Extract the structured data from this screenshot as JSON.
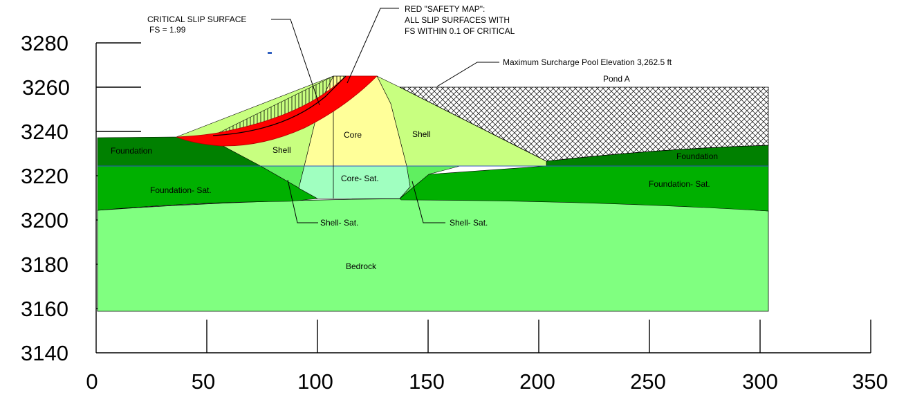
{
  "axes": {
    "x_ticks": [
      "0",
      "50",
      "100",
      "150",
      "200",
      "250",
      "300",
      "350"
    ],
    "y_ticks": [
      "3280",
      "3260",
      "3240",
      "3220",
      "3200",
      "3180",
      "3160",
      "3140"
    ]
  },
  "zones": {
    "foundation_left": "Foundation",
    "foundation_right": "Foundation",
    "foundation_sat_left": "Foundation- Sat.",
    "foundation_sat_right": "Foundation- Sat.",
    "shell_upstream": "Shell",
    "core": "Core",
    "shell_downstream": "Shell",
    "core_sat": "Core- Sat.",
    "shell_sat_left": "Shell- Sat.",
    "shell_sat_right": "Shell- Sat.",
    "bedrock": "Bedrock",
    "pond": "Pond A"
  },
  "annotations": {
    "critical_title": "CRITICAL SLIP SURFACE",
    "critical_fs": "FS = 1.99",
    "safety_line1": "RED \"SAFETY MAP\":",
    "safety_line2": "ALL SLIP SURFACES WITH",
    "safety_line3": "FS WITHIN 0.1 OF CRITICAL",
    "pool": "Maximum Surcharge Pool Elevation 3,262.5 ft"
  },
  "colors": {
    "bedrock": "#80ff80",
    "foundation": "#008000",
    "foundation_sat": "#00b000",
    "shell": "#c8ff80",
    "shell_sat": "#60ef60",
    "core": "#ffff99",
    "core_sat": "#a0ffc0",
    "safety_map": "#ff0000"
  }
}
